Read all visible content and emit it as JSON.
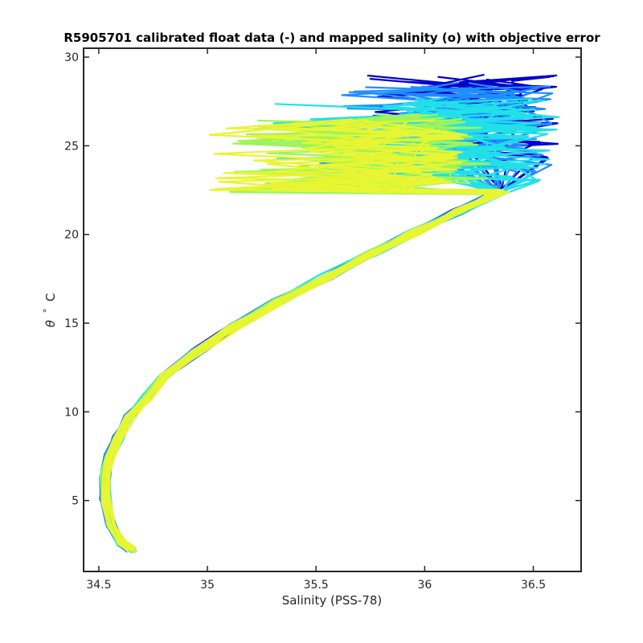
{
  "chart_data": {
    "type": "line",
    "title": "R5905701 calibrated float data (-) and mapped salinity (o) with objective error",
    "xlabel": "Salinity (PSS-78)",
    "ylabel_symbol": "θ",
    "ylabel_degree": "°",
    "ylabel_unit": "C",
    "xlim": [
      34.43,
      36.72
    ],
    "ylim": [
      1.0,
      30.5
    ],
    "xticks": [
      34.5,
      35,
      35.5,
      36,
      36.5
    ],
    "xtick_labels": [
      "34.5",
      "35",
      "35.5",
      "36",
      "36.5"
    ],
    "yticks": [
      5,
      10,
      15,
      20,
      25,
      30
    ],
    "ytick_labels": [
      "5",
      "10",
      "15",
      "20",
      "25",
      "30"
    ],
    "grid": false,
    "colormap": "parula/jet (profile index: early = dark blue, late = yellow)",
    "colors": {
      "early": "#0000cc",
      "mid_blue": "#1f8fff",
      "cyan": "#22e0e8",
      "green": "#9cf55a",
      "yellow": "#e8f532"
    },
    "base_profile": {
      "x": [
        34.65,
        34.6,
        34.56,
        34.53,
        34.53,
        34.55,
        34.59,
        34.64,
        34.72,
        34.8,
        34.95,
        35.12,
        35.32,
        35.55,
        35.75,
        35.95,
        36.15,
        36.35
      ],
      "y": [
        2.2,
        2.6,
        3.6,
        5.0,
        6.4,
        7.5,
        8.6,
        9.7,
        10.8,
        12.0,
        13.4,
        14.8,
        16.2,
        17.6,
        18.9,
        20.1,
        21.3,
        22.4
      ]
    },
    "series_groups": [
      {
        "name": "",
        "color": "#0000cc",
        "profile_count": 10,
        "surface_x_range": [
          35.7,
          36.62
        ],
        "surface_y_range": [
          24.0,
          29.2
        ]
      },
      {
        "name": "",
        "color": "#1f8fff",
        "profile_count": 14,
        "surface_x_range": [
          35.5,
          36.6
        ],
        "surface_y_range": [
          23.5,
          28.6
        ]
      },
      {
        "name": "",
        "color": "#22e0e8",
        "profile_count": 14,
        "surface_x_range": [
          35.3,
          36.62
        ],
        "surface_y_range": [
          23.0,
          27.8
        ]
      },
      {
        "name": "",
        "color": "#9cf55a",
        "profile_count": 12,
        "surface_x_range": [
          35.1,
          36.3
        ],
        "surface_y_range": [
          22.0,
          26.8
        ]
      },
      {
        "name": "",
        "color": "#e8f532",
        "profile_count": 12,
        "surface_x_range": [
          35.0,
          36.2
        ],
        "surface_y_range": [
          22.0,
          26.5
        ]
      }
    ]
  }
}
